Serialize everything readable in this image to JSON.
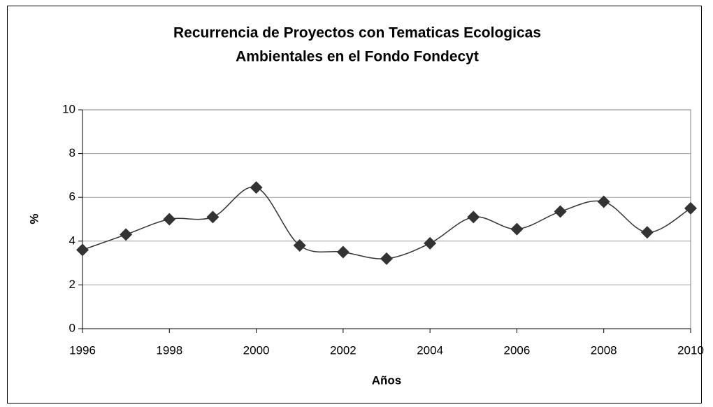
{
  "chart_data": {
    "type": "line",
    "title": [
      "Recurrencia de Proyectos con Tematicas Ecologicas",
      "Ambientales en el Fondo Fondecyt"
    ],
    "x_label": "Años",
    "y_label": "%",
    "x": [
      1996,
      1997,
      1998,
      1999,
      2000,
      2001,
      2002,
      2003,
      2004,
      2005,
      2006,
      2007,
      2008,
      2009,
      2010
    ],
    "series": [
      {
        "name": "%",
        "color": "#333333",
        "values": [
          3.6,
          4.3,
          5.0,
          5.1,
          6.45,
          3.8,
          3.5,
          3.2,
          3.9,
          5.1,
          4.55,
          5.35,
          5.8,
          4.4,
          5.5
        ]
      }
    ],
    "xlim": [
      1996,
      2010
    ],
    "xticks": [
      1996,
      1998,
      2000,
      2002,
      2004,
      2006,
      2008,
      2010
    ],
    "ylim": [
      0,
      10
    ],
    "yticks": [
      0,
      2,
      4,
      6,
      8,
      10
    ],
    "grid": true,
    "smooth": true,
    "marker": "diamond"
  }
}
